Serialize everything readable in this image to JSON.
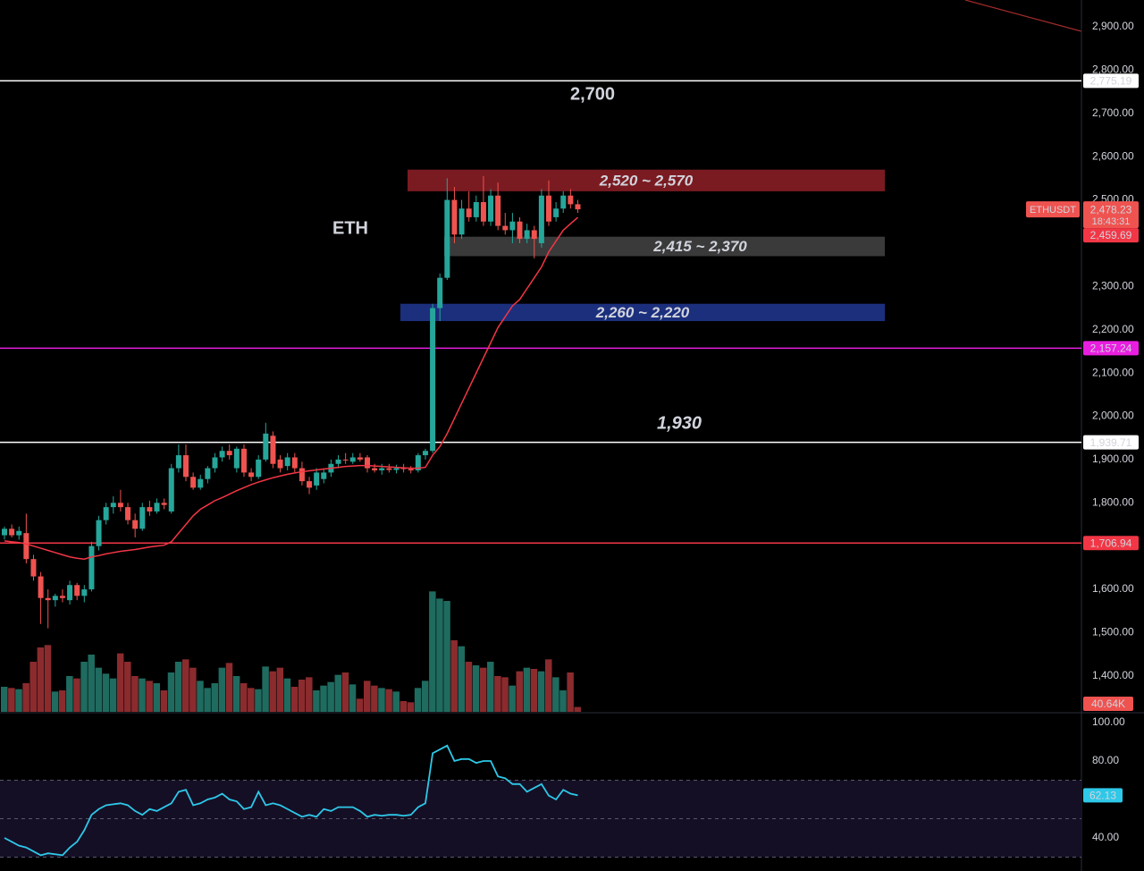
{
  "chart_data": {
    "type": "candlestick",
    "symbol": "ETHUSDT",
    "countdown": "18:43:31",
    "up_color": "#26a69a",
    "down_color": "#ef5350",
    "categories": [
      null,
      null,
      null,
      null,
      null,
      null,
      null,
      null,
      null,
      null,
      null,
      null,
      null,
      null,
      null,
      null,
      null,
      null,
      null,
      null,
      null,
      null,
      null,
      null,
      null,
      null,
      null,
      null,
      null,
      null,
      null,
      null,
      null,
      null,
      null,
      null,
      null,
      null,
      null,
      null,
      null,
      null,
      null,
      null,
      null,
      null,
      null,
      null,
      null,
      null,
      null,
      null,
      null,
      null,
      null,
      null,
      null,
      null,
      null,
      null,
      null,
      null,
      null,
      null,
      null,
      null,
      null,
      null,
      null,
      null,
      null,
      null,
      null,
      null,
      null,
      null,
      null,
      null,
      null,
      null
    ],
    "open": [
      1725,
      1740,
      1725,
      1730,
      1670,
      1630,
      1580,
      1575,
      1585,
      1575,
      1610,
      1585,
      1600,
      1700,
      1760,
      1790,
      1800,
      1790,
      1760,
      1740,
      1790,
      1780,
      1800,
      1780,
      1880,
      1910,
      1860,
      1835,
      1855,
      1880,
      1905,
      1920,
      1880,
      1925,
      1870,
      1860,
      1900,
      1955,
      1900,
      1885,
      1905,
      1880,
      1850,
      1840,
      1855,
      1870,
      1890,
      1900,
      1895,
      1905,
      1905,
      1880,
      1875,
      1880,
      1876,
      1880,
      1878,
      1875,
      1910,
      1920,
      2250,
      2320,
      2500,
      2420,
      2480,
      2460,
      2495,
      2450,
      2510,
      2440,
      2430,
      2450,
      2410,
      2430,
      2400,
      2510,
      2460,
      2480,
      2510,
      2490
    ],
    "high": [
      1745,
      1750,
      1745,
      1775,
      1680,
      1640,
      1600,
      1590,
      1600,
      1620,
      1615,
      1610,
      1710,
      1770,
      1800,
      1815,
      1830,
      1800,
      1775,
      1800,
      1805,
      1810,
      1810,
      1890,
      1935,
      1935,
      1870,
      1865,
      1885,
      1915,
      1930,
      1935,
      1930,
      1935,
      1880,
      1910,
      1985,
      1965,
      1910,
      1915,
      1915,
      1895,
      1860,
      1880,
      1880,
      1900,
      1910,
      1915,
      1915,
      1915,
      1910,
      1890,
      1890,
      1890,
      1888,
      1890,
      1885,
      1915,
      1925,
      2260,
      2330,
      2550,
      2530,
      2500,
      2520,
      2510,
      2555,
      2525,
      2540,
      2470,
      2470,
      2460,
      2445,
      2440,
      2525,
      2545,
      2495,
      2520,
      2525,
      2500
    ],
    "low": [
      1715,
      1720,
      1715,
      1660,
      1620,
      1520,
      1510,
      1560,
      1570,
      1565,
      1575,
      1570,
      1595,
      1690,
      1750,
      1775,
      1780,
      1750,
      1720,
      1735,
      1770,
      1775,
      1785,
      1775,
      1870,
      1850,
      1830,
      1830,
      1845,
      1870,
      1895,
      1900,
      1870,
      1860,
      1850,
      1855,
      1895,
      1880,
      1870,
      1875,
      1870,
      1840,
      1820,
      1830,
      1845,
      1860,
      1880,
      1890,
      1890,
      1895,
      1870,
      1870,
      1865,
      1870,
      1868,
      1870,
      1868,
      1870,
      1900,
      1915,
      2220,
      2315,
      2400,
      2410,
      2450,
      2450,
      2440,
      2440,
      2430,
      2420,
      2400,
      2400,
      2400,
      2365,
      2390,
      2440,
      2450,
      2470,
      2480,
      2470
    ],
    "close": [
      1740,
      1725,
      1735,
      1670,
      1630,
      1580,
      1575,
      1585,
      1580,
      1610,
      1585,
      1600,
      1700,
      1760,
      1790,
      1800,
      1790,
      1760,
      1740,
      1790,
      1780,
      1800,
      1795,
      1880,
      1910,
      1860,
      1835,
      1855,
      1880,
      1905,
      1920,
      1910,
      1925,
      1870,
      1860,
      1900,
      1960,
      1890,
      1880,
      1905,
      1880,
      1850,
      1835,
      1870,
      1870,
      1890,
      1900,
      1898,
      1905,
      1900,
      1880,
      1875,
      1880,
      1876,
      1880,
      1878,
      1875,
      1910,
      1920,
      2250,
      2320,
      2500,
      2420,
      2480,
      2460,
      2495,
      2450,
      2510,
      2440,
      2430,
      2450,
      2410,
      2430,
      2410,
      2510,
      2450,
      2480,
      2510,
      2490,
      2478.23
    ],
    "close_label": "2,478.23",
    "ma": {
      "color": "#f23645",
      "values": [
        1712,
        1710,
        1708,
        1705,
        1700,
        1695,
        1690,
        1685,
        1680,
        1675,
        1672,
        1670,
        1675,
        1678,
        1682,
        1685,
        1688,
        1690,
        1692,
        1695,
        1698,
        1700,
        1702,
        1710,
        1730,
        1750,
        1770,
        1785,
        1795,
        1805,
        1812,
        1820,
        1828,
        1835,
        1842,
        1848,
        1853,
        1858,
        1862,
        1866,
        1869,
        1872,
        1874,
        1876,
        1878,
        1880,
        1882,
        1884,
        1885,
        1886,
        1886,
        1885,
        1884,
        1883,
        1882,
        1881,
        1880,
        1880,
        1882,
        1910,
        1930,
        1960,
        1995,
        2030,
        2065,
        2100,
        2135,
        2170,
        2205,
        2230,
        2255,
        2270,
        2295,
        2320,
        2345,
        2380,
        2405,
        2430,
        2445,
        2459.69
      ],
      "last_label": "2,459.69"
    },
    "ylim": [
      1317,
      2962
    ],
    "yticks": [
      {
        "value": 1400,
        "label": "1,400.00"
      },
      {
        "value": 1500,
        "label": "1,500.00"
      },
      {
        "value": 1600,
        "label": "1,600.00"
      },
      {
        "value": 1800,
        "label": "1,800.00"
      },
      {
        "value": 1900,
        "label": "1,900.00"
      },
      {
        "value": 2000,
        "label": "2,000.00"
      },
      {
        "value": 2100,
        "label": "2,100.00"
      },
      {
        "value": 2200,
        "label": "2,200.00"
      },
      {
        "value": 2300,
        "label": "2,300.00"
      },
      {
        "value": 2500,
        "label": "2,500.00"
      },
      {
        "value": 2600,
        "label": "2,600.00"
      },
      {
        "value": 2700,
        "label": "2,700.00"
      },
      {
        "value": 2800,
        "label": "2,800.00"
      },
      {
        "value": 2900,
        "label": "2,900.00"
      }
    ],
    "grid": false,
    "levels": [
      {
        "value": 2775.19,
        "label": "2,775.19",
        "color": "#ffffff"
      },
      {
        "value": 2157.24,
        "label": "2,157.24",
        "color": "#e91ee0"
      },
      {
        "value": 1939.71,
        "label": "1,939.71",
        "color": "#ffffff"
      },
      {
        "value": 1706.94,
        "label": "1,706.94",
        "color": "#f23645"
      }
    ],
    "zones": [
      {
        "low": 2520,
        "high": 2570,
        "label": "2,520 ~ 2,570",
        "color": "#7a1b21"
      },
      {
        "low": 2370,
        "high": 2415,
        "label": "2,415 ~ 2,370",
        "color": "#3a3a3a"
      },
      {
        "low": 2220,
        "high": 2260,
        "label": "2,260 ~ 2,220",
        "color": "#1c2f7d"
      }
    ],
    "annotations": [
      {
        "text": "2,700",
        "color": "#ffd740"
      },
      {
        "text": "ETH",
        "color": "#ffffff"
      },
      {
        "text": "1,930",
        "color": "#f23645"
      }
    ],
    "volume": {
      "ylim": [
        0,
        1500
      ],
      "up_color": "#1f6b5f",
      "down_color": "#8b2b2e",
      "values": [
        210,
        200,
        190,
        240,
        420,
        540,
        560,
        170,
        180,
        300,
        280,
        420,
        480,
        370,
        320,
        280,
        490,
        420,
        300,
        280,
        260,
        240,
        180,
        330,
        420,
        440,
        370,
        260,
        200,
        240,
        370,
        410,
        300,
        240,
        200,
        190,
        380,
        340,
        370,
        280,
        210,
        270,
        290,
        180,
        220,
        250,
        310,
        330,
        230,
        110,
        260,
        220,
        200,
        190,
        170,
        90,
        80,
        200,
        260,
        1010,
        950,
        930,
        600,
        550,
        420,
        390,
        370,
        420,
        300,
        290,
        220,
        340,
        370,
        360,
        340,
        440,
        290,
        180,
        330,
        40.64
      ],
      "last_label": "40.64K"
    },
    "rsi": {
      "color": "#2ec8e8",
      "ylim": [
        22.8,
        105.1
      ],
      "yticks": [
        {
          "value": 40,
          "label": "40.00"
        },
        {
          "value": 80,
          "label": "80.00"
        },
        {
          "value": 100,
          "label": "100.00"
        }
      ],
      "bands": [
        70,
        50,
        30
      ],
      "values": [
        40,
        38,
        36,
        35,
        33,
        31,
        32,
        31.5,
        31,
        35,
        38,
        44,
        52,
        55,
        57,
        57.5,
        58,
        57,
        54,
        52,
        55,
        54,
        56,
        58,
        64,
        65,
        57,
        58,
        60,
        61,
        63,
        60,
        59,
        55,
        56,
        64,
        57,
        58,
        57,
        55,
        53,
        51,
        52,
        51,
        55,
        54,
        56,
        56,
        56,
        54,
        51,
        52,
        51.5,
        52,
        52,
        51.5,
        52,
        56,
        58,
        84,
        86,
        88,
        80,
        81,
        81,
        79,
        80,
        80,
        72,
        71,
        68,
        68,
        64,
        66,
        68,
        62,
        60,
        65,
        63,
        62.13
      ],
      "last_label": "62.13"
    }
  }
}
